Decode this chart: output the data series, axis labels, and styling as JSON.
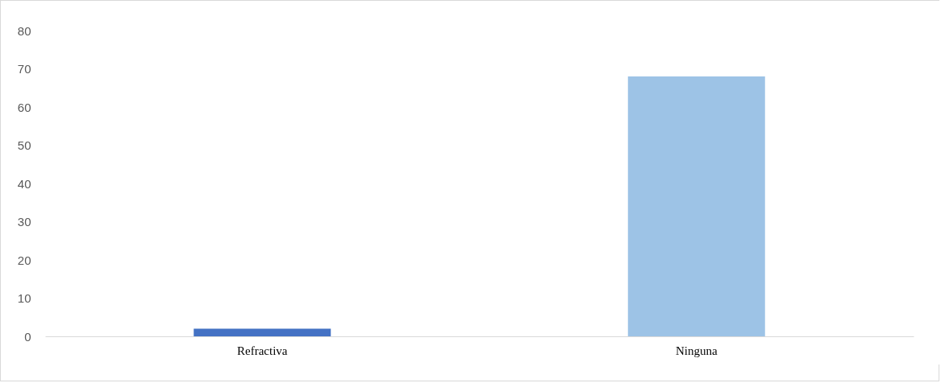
{
  "chart_data": {
    "type": "bar",
    "categories": [
      "Refractiva",
      "Ninguna"
    ],
    "colors": [
      "#4472c4",
      "#9dc3e6"
    ],
    "values": [
      2,
      68
    ],
    "ylim": [
      0,
      80
    ],
    "yticks": [
      0,
      10,
      20,
      30,
      40,
      50,
      60,
      70,
      80
    ],
    "grid": false,
    "legend": false
  }
}
